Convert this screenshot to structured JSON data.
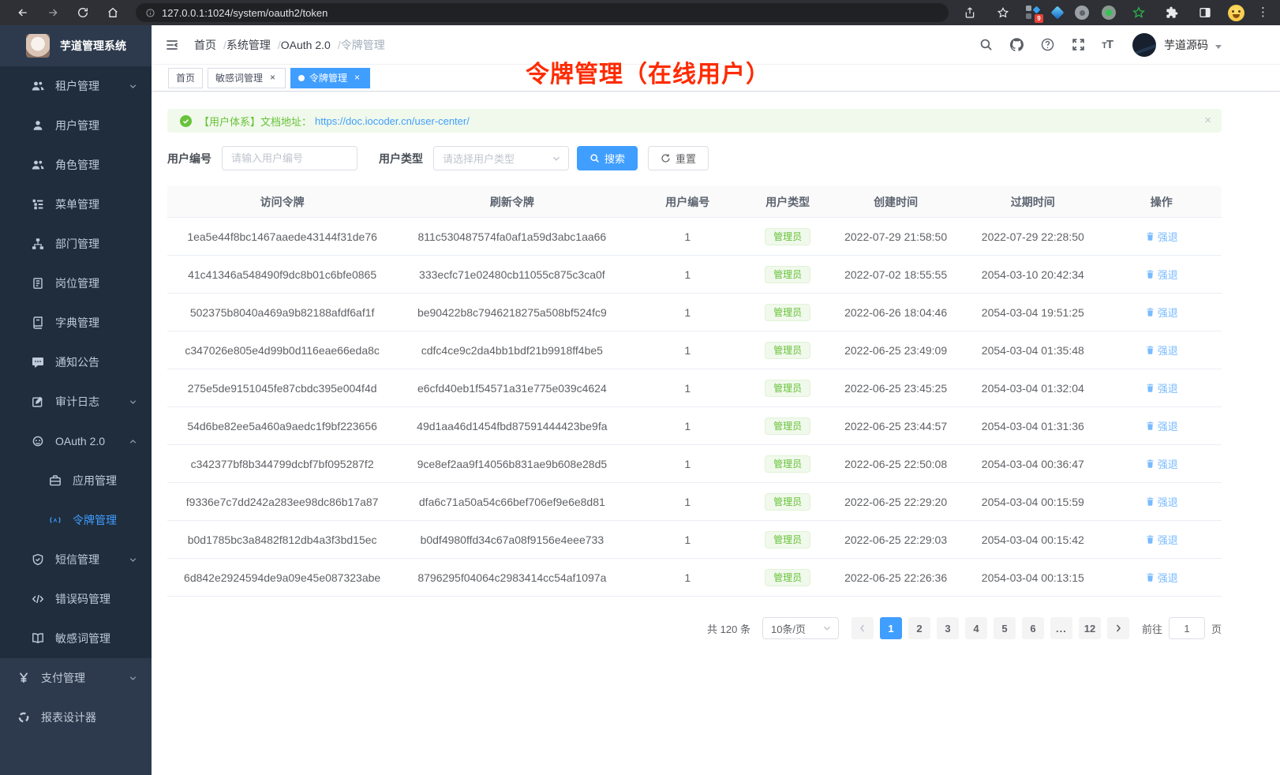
{
  "browser": {
    "url": "127.0.0.1:1024/system/oauth2/token",
    "extension_badge": "9"
  },
  "colors": {
    "accent": "#409eff",
    "success": "#67c23a",
    "link": "#79bbff",
    "annotation": "#fe2b00",
    "sidebar_bg": "#2d3a4d",
    "sidebar_sub_bg": "#1f2d3d"
  },
  "annotation": "令牌管理（在线用户）",
  "sidebar": {
    "logo_title": "芋道管理系统",
    "items": [
      {
        "label": "租户管理",
        "icon": "tenant-icon",
        "level": 2,
        "arrow": "down"
      },
      {
        "label": "用户管理",
        "icon": "user-icon",
        "level": 2
      },
      {
        "label": "角色管理",
        "icon": "role-icon",
        "level": 2
      },
      {
        "label": "菜单管理",
        "icon": "menu-icon",
        "level": 2
      },
      {
        "label": "部门管理",
        "icon": "dept-icon",
        "level": 2
      },
      {
        "label": "岗位管理",
        "icon": "post-icon",
        "level": 2
      },
      {
        "label": "字典管理",
        "icon": "dict-icon",
        "level": 2
      },
      {
        "label": "通知公告",
        "icon": "notice-icon",
        "level": 2
      },
      {
        "label": "审计日志",
        "icon": "audit-icon",
        "level": 2,
        "arrow": "down"
      },
      {
        "label": "OAuth 2.0",
        "icon": "oauth-icon",
        "level": 2,
        "arrow": "up"
      },
      {
        "label": "应用管理",
        "icon": "app-icon",
        "level": 3
      },
      {
        "label": "令牌管理",
        "icon": "token-icon",
        "level": 3,
        "active": true
      },
      {
        "label": "短信管理",
        "icon": "sms-icon",
        "level": 2,
        "arrow": "down"
      },
      {
        "label": "错误码管理",
        "icon": "errcode-icon",
        "level": 2
      },
      {
        "label": "敏感词管理",
        "icon": "sensitive-icon",
        "level": 2
      },
      {
        "label": "支付管理",
        "icon": "pay-icon",
        "level": 1,
        "arrow": "down",
        "section": "base"
      },
      {
        "label": "报表设计器",
        "icon": "report-icon",
        "level": 1,
        "section": "base"
      }
    ]
  },
  "header": {
    "breadcrumb": [
      "首页",
      "系统管理",
      "OAuth 2.0",
      "令牌管理"
    ],
    "breadcrumb_separator": "/",
    "user_name": "芋道源码"
  },
  "tabs": {
    "items": [
      {
        "label": "首页",
        "closable": false,
        "active": false
      },
      {
        "label": "敏感词管理",
        "closable": true,
        "active": false
      },
      {
        "label": "令牌管理",
        "closable": true,
        "active": true
      }
    ]
  },
  "alert": {
    "text": "【用户体系】文档地址：",
    "link": "https://doc.iocoder.cn/user-center/",
    "close_label": "×"
  },
  "filters": {
    "user_id_label": "用户编号",
    "user_id_placeholder": "请输入用户编号",
    "user_type_label": "用户类型",
    "user_type_placeholder": "请选择用户类型",
    "search_label": "搜索",
    "reset_label": "重置"
  },
  "table": {
    "columns": [
      "访问令牌",
      "刷新令牌",
      "用户编号",
      "用户类型",
      "创建时间",
      "过期时间",
      "操作"
    ],
    "action_label": "强退",
    "rows": [
      {
        "access": "1ea5e44f8bc1467aaede43144f31de76",
        "refresh": "811c530487574fa0af1a59d3abc1aa66",
        "user_id": "1",
        "user_type": "管理员",
        "created": "2022-07-29 21:58:50",
        "expires": "2022-07-29 22:28:50"
      },
      {
        "access": "41c41346a548490f9dc8b01c6bfe0865",
        "refresh": "333ecfc71e02480cb11055c875c3ca0f",
        "user_id": "1",
        "user_type": "管理员",
        "created": "2022-07-02 18:55:55",
        "expires": "2054-03-10 20:42:34"
      },
      {
        "access": "502375b8040a469a9b82188afdf6af1f",
        "refresh": "be90422b8c7946218275a508bf524fc9",
        "user_id": "1",
        "user_type": "管理员",
        "created": "2022-06-26 18:04:46",
        "expires": "2054-03-04 19:51:25"
      },
      {
        "access": "c347026e805e4d99b0d116eae66eda8c",
        "refresh": "cdfc4ce9c2da4bb1bdf21b9918ff4be5",
        "user_id": "1",
        "user_type": "管理员",
        "created": "2022-06-25 23:49:09",
        "expires": "2054-03-04 01:35:48"
      },
      {
        "access": "275e5de9151045fe87cbdc395e004f4d",
        "refresh": "e6cfd40eb1f54571a31e775e039c4624",
        "user_id": "1",
        "user_type": "管理员",
        "created": "2022-06-25 23:45:25",
        "expires": "2054-03-04 01:32:04"
      },
      {
        "access": "54d6be82ee5a460a9aedc1f9bf223656",
        "refresh": "49d1aa46d1454fbd87591444423be9fa",
        "user_id": "1",
        "user_type": "管理员",
        "created": "2022-06-25 23:44:57",
        "expires": "2054-03-04 01:31:36"
      },
      {
        "access": "c342377bf8b344799dcbf7bf095287f2",
        "refresh": "9ce8ef2aa9f14056b831ae9b608e28d5",
        "user_id": "1",
        "user_type": "管理员",
        "created": "2022-06-25 22:50:08",
        "expires": "2054-03-04 00:36:47"
      },
      {
        "access": "f9336e7c7dd242a283ee98dc86b17a87",
        "refresh": "dfa6c71a50a54c66bef706ef9e6e8d81",
        "user_id": "1",
        "user_type": "管理员",
        "created": "2022-06-25 22:29:20",
        "expires": "2054-03-04 00:15:59"
      },
      {
        "access": "b0d1785bc3a8482f812db4a3f3bd15ec",
        "refresh": "b0df4980ffd34c67a08f9156e4eee733",
        "user_id": "1",
        "user_type": "管理员",
        "created": "2022-06-25 22:29:03",
        "expires": "2054-03-04 00:15:42"
      },
      {
        "access": "6d842e2924594de9a09e45e087323abe",
        "refresh": "8796295f04064c2983414cc54af1097a",
        "user_id": "1",
        "user_type": "管理员",
        "created": "2022-06-25 22:26:36",
        "expires": "2054-03-04 00:13:15"
      }
    ]
  },
  "pagination": {
    "total_text": "共 120 条",
    "page_size_value": "10条/页",
    "pages": [
      "1",
      "2",
      "3",
      "4",
      "5",
      "6",
      "...",
      "12"
    ],
    "active_page": "1",
    "goto_label": "前往",
    "goto_value": "1",
    "goto_suffix": "页"
  }
}
